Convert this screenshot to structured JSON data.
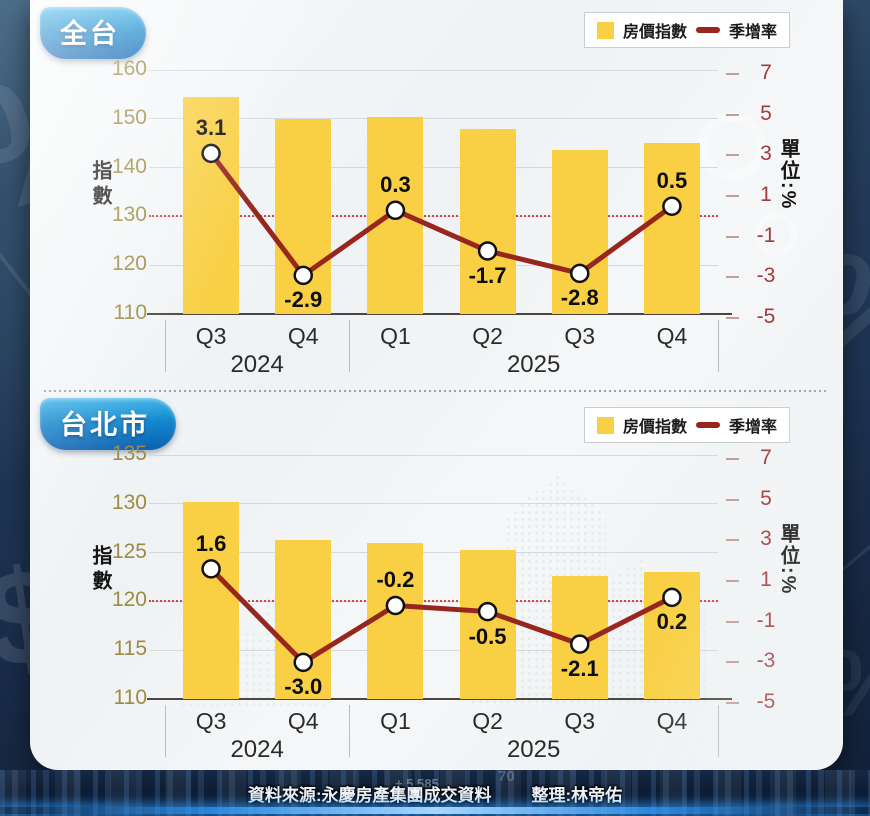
{
  "legend": {
    "bar_label": "房價指數",
    "line_label": "季增率"
  },
  "footer": {
    "source": "資料來源:永慶房產集團成交資料",
    "editor": "整理:林帝佑"
  },
  "background": {
    "watermarks": [
      "percent-sign",
      "dollar-sign",
      "percent-sign",
      "percent-sign"
    ],
    "footer_ticker": {
      "value_1": "+ 5,585",
      "value_2": "70"
    }
  },
  "colors": {
    "bar": "#F9D044",
    "line": "#97261E",
    "marker_fill": "#FFFFFF",
    "marker_stroke": "#111111",
    "left_tick": "#9C8B40",
    "right_tick": "#A23B3B",
    "zero_line": "#D3352B",
    "grid": "#D6D9DA",
    "axis": "#4C463E",
    "badge_gradient_top": "#3FB5E9",
    "badge_gradient_bottom": "#0A61B0",
    "panel_bg": "#F3F5F7",
    "footer_glow": "#2F9BFF"
  },
  "chart_data": [
    {
      "type": "bar+line",
      "title": "全台",
      "categories": [
        "Q3",
        "Q4",
        "Q1",
        "Q2",
        "Q3",
        "Q4"
      ],
      "year_groups": [
        {
          "label": "2024",
          "span": 2
        },
        {
          "label": "2025",
          "span": 4
        }
      ],
      "bar_series": {
        "name": "房價指數",
        "axis": "left",
        "values": [
          154.5,
          150.0,
          150.3,
          147.9,
          143.6,
          145.0
        ]
      },
      "line_series": {
        "name": "季增率",
        "axis": "right",
        "values": [
          3.1,
          -2.9,
          0.3,
          -1.7,
          -2.8,
          0.5
        ],
        "labels": [
          "3.1",
          "-2.9",
          "0.3",
          "-1.7",
          "-2.8",
          "0.5"
        ],
        "label_positions": [
          "above",
          "below",
          "above",
          "below",
          "below",
          "above"
        ]
      },
      "left_axis": {
        "label": "指數",
        "min": 110,
        "max": 160,
        "step": 10
      },
      "right_axis": {
        "label": "單位:%",
        "min": -5,
        "max": 7,
        "step": 2,
        "zero_at_left_value": 130
      },
      "zero_line": true,
      "grid": true,
      "legend_position": "top-right"
    },
    {
      "type": "bar+line",
      "title": "台北市",
      "categories": [
        "Q3",
        "Q4",
        "Q1",
        "Q2",
        "Q3",
        "Q4"
      ],
      "year_groups": [
        {
          "label": "2024",
          "span": 2
        },
        {
          "label": "2025",
          "span": 4
        }
      ],
      "bar_series": {
        "name": "房價指數",
        "axis": "left",
        "values": [
          130.2,
          126.3,
          126.0,
          125.3,
          122.6,
          123.0
        ]
      },
      "line_series": {
        "name": "季增率",
        "axis": "right",
        "values": [
          1.6,
          -3.0,
          -0.2,
          -0.5,
          -2.1,
          0.2
        ],
        "labels": [
          "1.6",
          "-3.0",
          "-0.2",
          "-0.5",
          "-2.1",
          "0.2"
        ],
        "label_positions": [
          "above",
          "below",
          "above",
          "below",
          "below",
          "below"
        ]
      },
      "left_axis": {
        "label": "指數",
        "min": 110,
        "max": 135,
        "step": 5
      },
      "right_axis": {
        "label": "單位:%",
        "min": -5,
        "max": 7,
        "step": 2,
        "zero_at_left_value": 120
      },
      "zero_line": true,
      "grid": true,
      "legend_position": "top-right"
    }
  ]
}
